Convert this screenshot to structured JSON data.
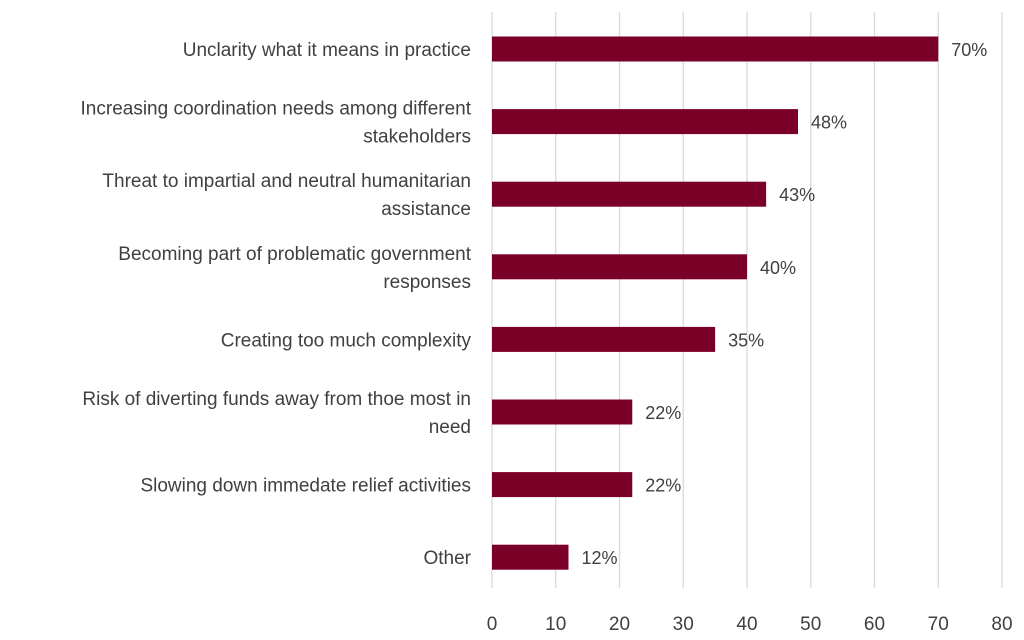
{
  "chart_data": {
    "type": "bar",
    "orientation": "horizontal",
    "categories": [
      [
        "Unclarity what it means in practice"
      ],
      [
        "Increasing coordination needs among different",
        "stakeholders"
      ],
      [
        "Threat to impartial and neutral humanitarian",
        "assistance"
      ],
      [
        "Becoming part of problematic government",
        "responses"
      ],
      [
        "Creating too much complexity"
      ],
      [
        "Risk of diverting funds away from thoe most in",
        "need"
      ],
      [
        "Slowing down immedate relief activities"
      ],
      [
        "Other"
      ]
    ],
    "values": [
      70,
      48,
      43,
      40,
      35,
      22,
      22,
      12
    ],
    "data_labels": [
      "70%",
      "48%",
      "43%",
      "40%",
      "35%",
      "22%",
      "22%",
      "12%"
    ],
    "xlim": [
      0,
      80
    ],
    "xticks": [
      "0",
      "10",
      "20",
      "30",
      "40",
      "50",
      "60",
      "70",
      "80"
    ],
    "grid": "vertical",
    "bar_color": "#7b0028",
    "title": "",
    "xlabel": "",
    "ylabel": ""
  }
}
